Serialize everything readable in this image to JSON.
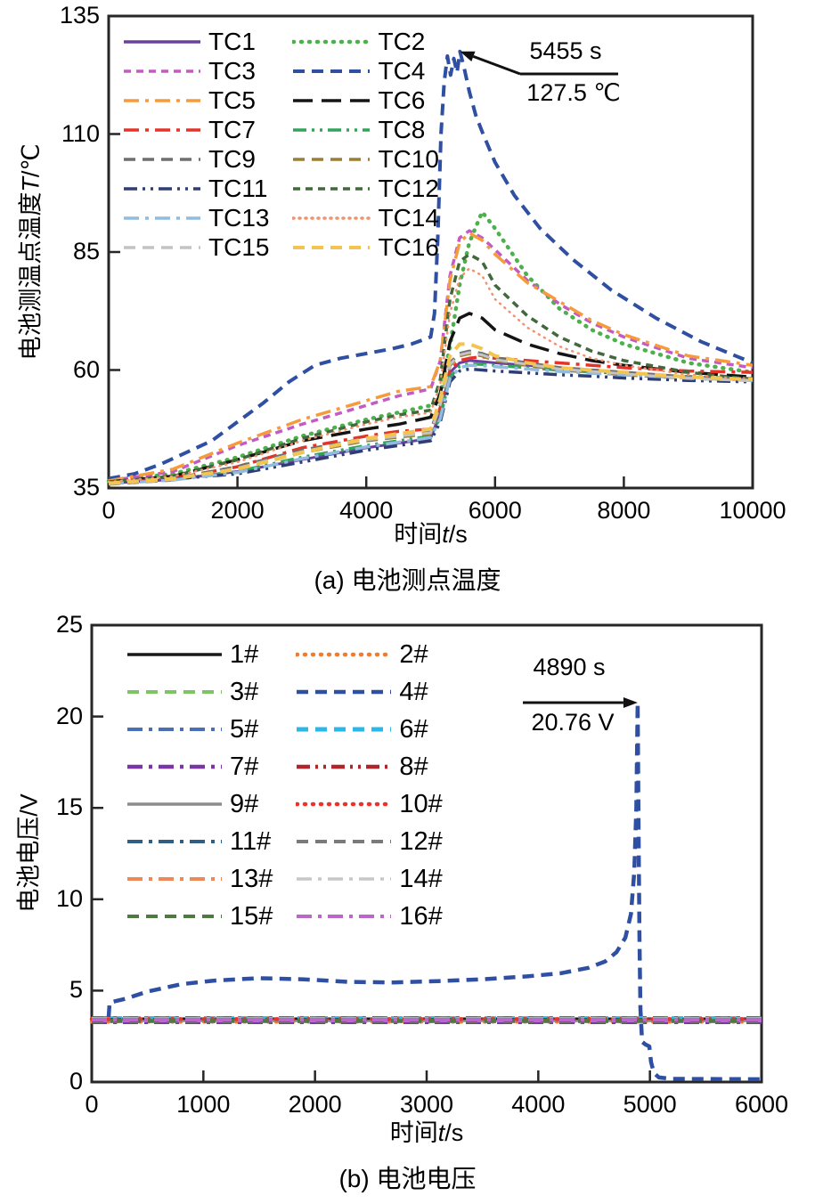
{
  "colors": {
    "frame": "#262626",
    "annotation": "#111111",
    "background": "#ffffff"
  },
  "charts": [
    {
      "id": "a",
      "caption": "(a) 电池测点温度",
      "xlabel": {
        "prefix": "时间",
        "italic": "t",
        "suffix": "/s"
      },
      "ylabel": {
        "prefix": "电池测温点温度",
        "italic": "T",
        "suffix": "/℃"
      },
      "annotation": {
        "time": "5455 s",
        "value": "127.5 ℃",
        "target_x": 5455,
        "target_y": 127.5
      },
      "chart_data": {
        "type": "line",
        "xlim": [
          0,
          10000
        ],
        "ylim": [
          35,
          135
        ],
        "xticks": [
          0,
          2000,
          4000,
          6000,
          8000,
          10000
        ],
        "yticks": [
          35,
          60,
          85,
          110,
          135
        ],
        "grid": false,
        "legend_position": "top-left",
        "x_grid": [
          0,
          1000,
          2000,
          3000,
          4000,
          4500,
          5000,
          5150,
          5300,
          5450,
          5600,
          5800,
          6000,
          6500,
          7000,
          7500,
          8000,
          9000,
          10000
        ],
        "series": [
          {
            "name": "TC1",
            "color": "#6B3FA0",
            "style": "solid",
            "width": 3,
            "values": [
              36.0,
              36.8,
              38.5,
              41.0,
              43.5,
              44.5,
              45.5,
              51.0,
              59.5,
              61.5,
              62.0,
              61.8,
              61.5,
              61.0,
              60.5,
              60.0,
              59.5,
              58.5,
              58.2
            ]
          },
          {
            "name": "TC2",
            "color": "#4CB04C",
            "style": "dot",
            "width": 4.5,
            "values": [
              36.5,
              38.0,
              41.5,
              46.0,
              49.5,
              51.0,
              52.5,
              55.0,
              65.0,
              78.0,
              87.0,
              93.5,
              90.0,
              80.0,
              73.0,
              68.5,
              65.5,
              61.5,
              59.5
            ]
          },
          {
            "name": "TC3",
            "color": "#C35BC3",
            "style": "shortdash",
            "width": 3.5,
            "values": [
              36.5,
              38.5,
              44.0,
              48.5,
              52.5,
              54.5,
              56.0,
              62.0,
              80.0,
              88.0,
              89.5,
              88.0,
              85.5,
              79.0,
              74.0,
              70.0,
              67.0,
              62.5,
              60.5
            ]
          },
          {
            "name": "TC4",
            "color": "#2F4FA2",
            "style": "dash",
            "width": 4,
            "points": [
              [
                0,
                37
              ],
              [
                400,
                38
              ],
              [
                800,
                40
              ],
              [
                1200,
                42.5
              ],
              [
                1600,
                45
              ],
              [
                2000,
                49
              ],
              [
                2400,
                53
              ],
              [
                2800,
                57.5
              ],
              [
                3200,
                61
              ],
              [
                3600,
                62.5
              ],
              [
                4000,
                63.5
              ],
              [
                4400,
                64.5
              ],
              [
                4700,
                65.5
              ],
              [
                5000,
                67
              ],
              [
                5060,
                72
              ],
              [
                5110,
                88
              ],
              [
                5160,
                110
              ],
              [
                5210,
                121
              ],
              [
                5260,
                126.5
              ],
              [
                5310,
                122.5
              ],
              [
                5360,
                126
              ],
              [
                5410,
                123
              ],
              [
                5455,
                127.5
              ],
              [
                5520,
                124
              ],
              [
                5600,
                119
              ],
              [
                5700,
                114
              ],
              [
                5800,
                110.5
              ],
              [
                6000,
                104
              ],
              [
                6300,
                97
              ],
              [
                6700,
                90
              ],
              [
                7200,
                83.5
              ],
              [
                7800,
                77
              ],
              [
                8500,
                71
              ],
              [
                9200,
                66
              ],
              [
                10000,
                61.5
              ]
            ]
          },
          {
            "name": "TC5",
            "color": "#F59B3C",
            "style": "dashdot",
            "width": 3.5,
            "values": [
              36.5,
              39.0,
              44.5,
              49.5,
              53.5,
              55.5,
              56.5,
              62.0,
              79.0,
              87.0,
              89.0,
              87.5,
              84.5,
              78.5,
              74.5,
              70.5,
              67.5,
              63.0,
              61.0
            ]
          },
          {
            "name": "TC6",
            "color": "#141414",
            "style": "longdash",
            "width": 3.5,
            "values": [
              36.3,
              37.5,
              41.0,
              45.0,
              47.5,
              48.5,
              50.0,
              55.0,
              66.0,
              71.0,
              72.0,
              71.0,
              68.5,
              65.5,
              63.5,
              62.0,
              61.0,
              59.5,
              58.5
            ]
          },
          {
            "name": "TC7",
            "color": "#E63329",
            "style": "dashdot",
            "width": 3.5,
            "values": [
              36.2,
              37.0,
              39.5,
              43.5,
              46.0,
              47.0,
              47.5,
              52.0,
              60.0,
              62.0,
              62.5,
              62.8,
              62.5,
              62.0,
              61.5,
              61.0,
              60.5,
              59.8,
              59.5
            ]
          },
          {
            "name": "TC8",
            "color": "#33A35C",
            "style": "dashdotdot",
            "width": 3.5,
            "values": [
              36.0,
              36.8,
              38.5,
              41.5,
              44.0,
              45.0,
              46.0,
              50.0,
              58.5,
              60.8,
              61.3,
              61.2,
              61.0,
              60.5,
              60.0,
              59.6,
              59.3,
              58.6,
              58.2
            ]
          },
          {
            "name": "TC9",
            "color": "#6F6F6F",
            "style": "dash",
            "width": 3.5,
            "values": [
              36.0,
              37.0,
              39.5,
              43.0,
              45.5,
              46.3,
              47.0,
              53.0,
              61.5,
              63.5,
              64.0,
              63.5,
              62.5,
              61.5,
              60.5,
              60.0,
              59.5,
              58.5,
              58.0
            ]
          },
          {
            "name": "TC10",
            "color": "#9C7E35",
            "style": "dash",
            "width": 3.5,
            "values": [
              35.8,
              36.7,
              39.0,
              42.5,
              45.0,
              45.8,
              46.5,
              52.5,
              61.0,
              63.0,
              63.5,
              63.0,
              62.0,
              61.0,
              60.0,
              59.5,
              59.0,
              58.2,
              57.8
            ]
          },
          {
            "name": "TC11",
            "color": "#2E3D76",
            "style": "dashdotdot",
            "width": 3.5,
            "values": [
              36.0,
              36.9,
              38.0,
              40.5,
              43.0,
              44.0,
              45.0,
              49.0,
              57.5,
              59.8,
              60.2,
              60.0,
              59.8,
              59.4,
              59.0,
              58.7,
              58.3,
              57.8,
              57.5
            ]
          },
          {
            "name": "TC12",
            "color": "#41693B",
            "style": "shortdash",
            "width": 3.5,
            "values": [
              36.3,
              37.5,
              41.0,
              45.5,
              49.0,
              50.5,
              51.5,
              58.0,
              75.0,
              83.0,
              84.5,
              83.0,
              78.0,
              71.5,
              67.0,
              64.0,
              62.0,
              59.5,
              58.0
            ]
          },
          {
            "name": "TC13",
            "color": "#8FBCDF",
            "style": "dashdot",
            "width": 3.5,
            "values": [
              35.9,
              36.7,
              38.3,
              41.2,
              43.7,
              44.7,
              45.7,
              49.7,
              58.2,
              60.5,
              61.0,
              60.9,
              60.7,
              60.2,
              59.7,
              59.3,
              59.0,
              58.3,
              57.8
            ]
          },
          {
            "name": "TC14",
            "color": "#F0926F",
            "style": "densedot",
            "width": 2.5,
            "values": [
              36.3,
              37.5,
              40.5,
              45.0,
              48.5,
              50.0,
              51.0,
              57.0,
              72.0,
              79.5,
              81.5,
              80.0,
              75.0,
              69.0,
              65.0,
              62.5,
              61.0,
              59.0,
              58.0
            ]
          },
          {
            "name": "TC15",
            "color": "#C3C3C3",
            "style": "dash",
            "width": 3,
            "values": [
              35.9,
              36.8,
              39.2,
              42.7,
              45.2,
              46.0,
              46.7,
              52.7,
              61.2,
              63.2,
              63.7,
              63.2,
              62.2,
              61.2,
              60.2,
              59.7,
              59.2,
              58.2,
              57.7
            ]
          },
          {
            "name": "TC16",
            "color": "#F3C44F",
            "style": "dash",
            "width": 4,
            "values": [
              36.0,
              37.0,
              39.0,
              42.5,
              45.5,
              46.5,
              47.5,
              54.0,
              63.0,
              65.5,
              65.5,
              64.5,
              63.0,
              61.5,
              60.5,
              60.0,
              59.5,
              58.5,
              58.0
            ]
          }
        ]
      }
    },
    {
      "id": "b",
      "caption": "(b) 电池电压",
      "xlabel": {
        "prefix": "时间",
        "italic": "t",
        "suffix": "/s"
      },
      "ylabel": {
        "prefix": "电池电压",
        "italic": "",
        "suffix": "/V"
      },
      "annotation": {
        "time": "4890 s",
        "value": "20.76 V",
        "target_x": 4890,
        "target_y": 20.76
      },
      "chart_data": {
        "type": "line",
        "xlim": [
          0,
          6000
        ],
        "ylim": [
          0,
          25
        ],
        "xticks": [
          0,
          1000,
          2000,
          3000,
          4000,
          5000,
          6000
        ],
        "yticks": [
          0,
          5,
          10,
          15,
          20,
          25
        ],
        "grid": false,
        "legend_position": "top-left",
        "x_grid": [
          0,
          6000
        ],
        "series": [
          {
            "name": "1#",
            "color": "#1A1A1A",
            "style": "solid",
            "width": 3,
            "values": [
              3.46,
              3.46
            ]
          },
          {
            "name": "2#",
            "color": "#EE7D32",
            "style": "dot",
            "width": 4.5,
            "values": [
              3.3,
              3.3
            ]
          },
          {
            "name": "3#",
            "color": "#7CC465",
            "style": "dash",
            "width": 4,
            "values": [
              3.36,
              3.36
            ]
          },
          {
            "name": "4#",
            "color": "#2F4FA2",
            "style": "dash",
            "width": 4.5,
            "points": [
              [
                0,
                3.42
              ],
              [
                150,
                3.45
              ],
              [
                160,
                4.35
              ],
              [
                300,
                4.55
              ],
              [
                500,
                4.95
              ],
              [
                800,
                5.35
              ],
              [
                1100,
                5.55
              ],
              [
                1500,
                5.68
              ],
              [
                1900,
                5.62
              ],
              [
                2300,
                5.48
              ],
              [
                2700,
                5.45
              ],
              [
                3100,
                5.52
              ],
              [
                3500,
                5.62
              ],
              [
                3900,
                5.78
              ],
              [
                4200,
                5.95
              ],
              [
                4450,
                6.25
              ],
              [
                4600,
                6.6
              ],
              [
                4700,
                7.1
              ],
              [
                4780,
                7.9
              ],
              [
                4830,
                9.2
              ],
              [
                4860,
                11.5
              ],
              [
                4878,
                15.0
              ],
              [
                4890,
                20.76
              ],
              [
                4898,
                14.0
              ],
              [
                4906,
                8.0
              ],
              [
                4915,
                4.0
              ],
              [
                4930,
                2.2
              ],
              [
                4960,
                2.05
              ],
              [
                4995,
                1.95
              ],
              [
                5010,
                1.1
              ],
              [
                5035,
                0.5
              ],
              [
                5080,
                0.25
              ],
              [
                5200,
                0.17
              ],
              [
                6000,
                0.15
              ]
            ]
          },
          {
            "name": "5#",
            "color": "#4A6FB7",
            "style": "dashdot",
            "width": 4,
            "values": [
              3.42,
              3.42
            ]
          },
          {
            "name": "6#",
            "color": "#2CB7E9",
            "style": "dash",
            "width": 5,
            "values": [
              3.48,
              3.48
            ]
          },
          {
            "name": "7#",
            "color": "#7A36A6",
            "style": "dashdot",
            "width": 4.5,
            "values": [
              3.28,
              3.28
            ]
          },
          {
            "name": "8#",
            "color": "#B2242A",
            "style": "dashdotdot",
            "width": 4.5,
            "values": [
              3.4,
              3.4
            ]
          },
          {
            "name": "9#",
            "color": "#8C8C8C",
            "style": "solid",
            "width": 2.5,
            "values": [
              3.34,
              3.34
            ]
          },
          {
            "name": "10#",
            "color": "#EA332C",
            "style": "dot",
            "width": 4.5,
            "values": [
              3.44,
              3.44
            ]
          },
          {
            "name": "11#",
            "color": "#2F5F84",
            "style": "dashdot",
            "width": 4,
            "values": [
              3.5,
              3.5
            ]
          },
          {
            "name": "12#",
            "color": "#7A7A7A",
            "style": "dash",
            "width": 4,
            "values": [
              3.32,
              3.32
            ]
          },
          {
            "name": "13#",
            "color": "#EF8757",
            "style": "dashdot",
            "width": 4,
            "values": [
              3.38,
              3.38
            ]
          },
          {
            "name": "14#",
            "color": "#C7C7C7",
            "style": "dashdot",
            "width": 3.5,
            "values": [
              3.46,
              3.46
            ]
          },
          {
            "name": "15#",
            "color": "#4C7A40",
            "style": "dash",
            "width": 4,
            "values": [
              3.35,
              3.35
            ]
          },
          {
            "name": "16#",
            "color": "#BB67C9",
            "style": "dashdot",
            "width": 4,
            "values": [
              3.41,
              3.41
            ]
          }
        ]
      }
    }
  ]
}
